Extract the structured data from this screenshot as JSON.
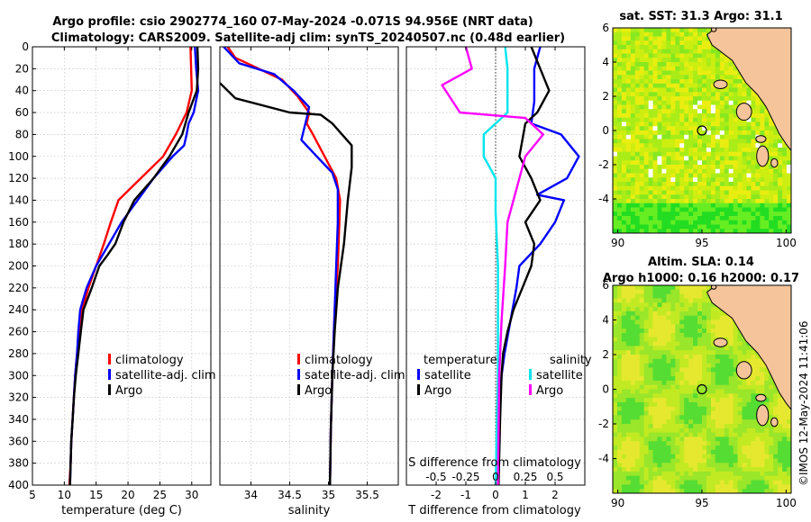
{
  "header": {
    "title_line1": "Argo profile: csio 2902774_160 07-May-2024 -0.071S 94.956E (NRT data)",
    "title_line2": "Climatology: CARS2009. Satellite-adj clim: synTS_20240507.nc (0.48d earlier)"
  },
  "colors": {
    "climatology": "#ff0000",
    "satellite": "#0000ff",
    "argo": "#000000",
    "sat_salinity": "#00e5ee",
    "argo_salinity": "#ff00ff",
    "land": "#f5c49a"
  },
  "chart_data": [
    {
      "type": "line",
      "name": "temperature",
      "xlabel": "temperature (deg C)",
      "xlim": [
        5,
        33
      ],
      "xticks": [
        5,
        10,
        15,
        20,
        25,
        30
      ],
      "ylim": [
        0,
        400
      ],
      "yticks": [
        0,
        20,
        40,
        60,
        80,
        100,
        120,
        140,
        160,
        180,
        200,
        220,
        240,
        260,
        280,
        300,
        320,
        340,
        360,
        380,
        400
      ],
      "legend": [
        "climatology",
        "satellite-adj. clim",
        "Argo"
      ],
      "series": [
        {
          "name": "climatology",
          "color": "#ff0000",
          "points": [
            [
              29.8,
              0
            ],
            [
              29.9,
              20
            ],
            [
              30.0,
              40
            ],
            [
              29.2,
              60
            ],
            [
              27.5,
              80
            ],
            [
              25.5,
              100
            ],
            [
              22,
              120
            ],
            [
              18.5,
              140
            ],
            [
              17.3,
              160
            ],
            [
              16.2,
              180
            ],
            [
              15,
              200
            ],
            [
              13.8,
              220
            ],
            [
              12.8,
              240
            ],
            [
              12.4,
              260
            ],
            [
              12,
              280
            ],
            [
              11.7,
              300
            ],
            [
              11.5,
              320
            ],
            [
              11.3,
              340
            ],
            [
              11.1,
              360
            ],
            [
              11,
              380
            ],
            [
              10.8,
              400
            ]
          ]
        },
        {
          "name": "satellite-adj. clim",
          "color": "#0000ff",
          "points": [
            [
              30.5,
              0
            ],
            [
              30.7,
              20
            ],
            [
              31,
              40
            ],
            [
              30.3,
              60
            ],
            [
              29.5,
              70
            ],
            [
              29.2,
              80
            ],
            [
              28.8,
              90
            ],
            [
              27,
              100
            ],
            [
              24,
              120
            ],
            [
              21.5,
              140
            ],
            [
              19,
              160
            ],
            [
              17,
              180
            ],
            [
              15,
              200
            ],
            [
              13.5,
              220
            ],
            [
              12.5,
              240
            ],
            [
              12.2,
              260
            ],
            [
              12,
              280
            ],
            [
              11.7,
              300
            ],
            [
              11.5,
              320
            ],
            [
              11.3,
              340
            ],
            [
              11.1,
              360
            ],
            [
              11,
              380
            ],
            [
              10.9,
              400
            ]
          ]
        },
        {
          "name": "Argo",
          "color": "#000000",
          "points": [
            [
              30.9,
              0
            ],
            [
              31,
              20
            ],
            [
              30.8,
              40
            ],
            [
              29.5,
              60
            ],
            [
              28.5,
              80
            ],
            [
              26.5,
              100
            ],
            [
              24,
              120
            ],
            [
              21,
              140
            ],
            [
              19.3,
              160
            ],
            [
              18,
              180
            ],
            [
              16.8,
              190
            ],
            [
              15.5,
              200
            ],
            [
              14.3,
              220
            ],
            [
              13,
              240
            ],
            [
              12.6,
              260
            ],
            [
              12.2,
              280
            ],
            [
              11.8,
              300
            ],
            [
              11.5,
              320
            ],
            [
              11.3,
              340
            ],
            [
              11.1,
              360
            ],
            [
              11,
              380
            ],
            [
              10.9,
              400
            ]
          ]
        }
      ]
    },
    {
      "type": "line",
      "name": "salinity",
      "xlabel": "salinity",
      "xlim": [
        33.6,
        35.9
      ],
      "xticks": [
        34,
        34.5,
        35,
        35.5
      ],
      "ylim": [
        0,
        400
      ],
      "legend": [
        "climatology",
        "satellite-adj. clim",
        "Argo"
      ],
      "series": [
        {
          "name": "climatology",
          "color": "#ff0000",
          "points": [
            [
              33.7,
              0
            ],
            [
              33.8,
              10
            ],
            [
              34.1,
              20
            ],
            [
              34.4,
              30
            ],
            [
              34.6,
              45
            ],
            [
              34.75,
              60
            ],
            [
              34.72,
              70
            ],
            [
              34.8,
              80
            ],
            [
              34.95,
              100
            ],
            [
              35.1,
              120
            ],
            [
              35.15,
              140
            ],
            [
              35.14,
              160
            ],
            [
              35.12,
              200
            ],
            [
              35.08,
              240
            ],
            [
              35.05,
              300
            ],
            [
              35.03,
              350
            ],
            [
              35.02,
              400
            ]
          ]
        },
        {
          "name": "satellite-adj. clim",
          "color": "#0000ff",
          "points": [
            [
              33.65,
              0
            ],
            [
              33.85,
              15
            ],
            [
              34.3,
              25
            ],
            [
              34.55,
              40
            ],
            [
              34.75,
              55
            ],
            [
              34.72,
              65
            ],
            [
              34.65,
              85
            ],
            [
              34.85,
              100
            ],
            [
              35.05,
              115
            ],
            [
              35.12,
              130
            ],
            [
              35.12,
              160
            ],
            [
              35.1,
              200
            ],
            [
              35.08,
              240
            ],
            [
              35.05,
              300
            ],
            [
              35.03,
              350
            ],
            [
              35.02,
              400
            ]
          ]
        },
        {
          "name": "Argo",
          "color": "#000000",
          "points": [
            [
              33.6,
              33
            ],
            [
              33.8,
              47
            ],
            [
              34.5,
              60
            ],
            [
              34.9,
              62
            ],
            [
              35.05,
              70
            ],
            [
              35.2,
              82
            ],
            [
              35.3,
              90
            ],
            [
              35.3,
              110
            ],
            [
              35.25,
              140
            ],
            [
              35.2,
              180
            ],
            [
              35.12,
              220
            ],
            [
              35.08,
              260
            ],
            [
              35.05,
              300
            ],
            [
              35.03,
              350
            ],
            [
              35.02,
              400
            ]
          ]
        }
      ]
    },
    {
      "type": "line",
      "name": "difference",
      "xlabel": "T difference from climatology",
      "xlabel_top": "S difference from climatology",
      "xlim": [
        -3,
        3
      ],
      "xticks": [
        -2,
        -1,
        0,
        1,
        2
      ],
      "xticks_S_labels": [
        "-0.5",
        "-0.25",
        "0",
        "0.25",
        "0.5"
      ],
      "legend_temperature_title": "temperature",
      "legend_salinity_title": "salinity",
      "legend_temperature": [
        "satellite",
        "Argo"
      ],
      "legend_salinity": [
        "satellite",
        "Argo"
      ],
      "series": [
        {
          "name": "T satellite",
          "color": "#0000ff",
          "points": [
            [
              1.5,
              0
            ],
            [
              1.3,
              20
            ],
            [
              1.3,
              50
            ],
            [
              1.2,
              70
            ],
            [
              2.2,
              80
            ],
            [
              2.8,
              100
            ],
            [
              2.4,
              120
            ],
            [
              1.4,
              135
            ],
            [
              2.3,
              140
            ],
            [
              2.0,
              160
            ],
            [
              1.5,
              180
            ],
            [
              0.8,
              200
            ],
            [
              0.7,
              220
            ],
            [
              0.5,
              250
            ],
            [
              0.3,
              280
            ],
            [
              0.2,
              300
            ],
            [
              0.1,
              340
            ],
            [
              0.1,
              400
            ]
          ]
        },
        {
          "name": "T Argo",
          "color": "#000000",
          "points": [
            [
              1.2,
              0
            ],
            [
              1.5,
              20
            ],
            [
              1.8,
              40
            ],
            [
              1.4,
              60
            ],
            [
              1.0,
              70
            ],
            [
              0.8,
              100
            ],
            [
              1.2,
              120
            ],
            [
              1.5,
              140
            ],
            [
              1.0,
              160
            ],
            [
              1.3,
              180
            ],
            [
              1.2,
              200
            ],
            [
              0.9,
              220
            ],
            [
              0.6,
              240
            ],
            [
              0.4,
              260
            ],
            [
              0.25,
              280
            ],
            [
              0.2,
              300
            ],
            [
              0.15,
              340
            ],
            [
              0.1,
              400
            ]
          ]
        },
        {
          "name": "S satellite",
          "color": "#00e5ee",
          "points": [
            [
              0.08,
              0
            ],
            [
              0.1,
              20
            ],
            [
              0.1,
              60
            ],
            [
              -0.1,
              80
            ],
            [
              -0.1,
              100
            ],
            [
              0.0,
              120
            ],
            [
              0.0,
              150
            ],
            [
              0.02,
              200
            ],
            [
              0.02,
              300
            ],
            [
              0.0,
              400
            ]
          ]
        },
        {
          "name": "S Argo",
          "color": "#ff00ff",
          "points": [
            [
              -0.25,
              0
            ],
            [
              -0.2,
              20
            ],
            [
              -0.45,
              35
            ],
            [
              -0.3,
              60
            ],
            [
              0.25,
              65
            ],
            [
              0.4,
              80
            ],
            [
              0.25,
              100
            ],
            [
              0.2,
              120
            ],
            [
              0.15,
              140
            ],
            [
              0.1,
              160
            ],
            [
              0.08,
              200
            ],
            [
              0.05,
              250
            ],
            [
              0.03,
              300
            ],
            [
              0.02,
              400
            ]
          ]
        }
      ]
    },
    {
      "type": "heatmap",
      "name": "sst-map",
      "title": "sat. SST: 31.3 Argo: 31.1",
      "xticks": [
        90,
        95,
        100
      ],
      "yticks": [
        6,
        4,
        2,
        0,
        -2,
        -4
      ],
      "xlim": [
        89.7,
        100.3
      ],
      "ylim": [
        -6,
        6
      ],
      "marker": [
        95,
        0
      ]
    },
    {
      "type": "heatmap",
      "name": "sla-map",
      "title_line1": "Altim. SLA: 0.14",
      "title_line2": "Argo h1000: 0.16 h2000: 0.17",
      "xticks": [
        90,
        95,
        100
      ],
      "yticks": [
        6,
        4,
        2,
        0,
        -2,
        -4
      ],
      "xlim": [
        89.7,
        100.3
      ],
      "ylim": [
        -6,
        6
      ],
      "marker": [
        95,
        0
      ]
    }
  ],
  "footer": {
    "credit": "©IMOS 12-May-2024 11:41:06"
  }
}
